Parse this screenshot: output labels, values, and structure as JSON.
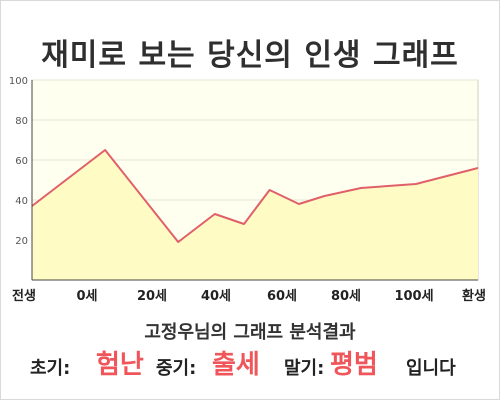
{
  "title": "재미로 보는 당신의 인생 그래프",
  "chart_data": {
    "type": "area",
    "y_ticks": [
      100,
      80,
      60,
      40,
      20
    ],
    "ylim": [
      0,
      100
    ],
    "x_tick_labels": [
      "전생",
      "0세",
      "20세",
      "40세",
      "60세",
      "80세",
      "100세",
      "환생"
    ],
    "points": [
      {
        "x": -20,
        "y": 37
      },
      {
        "x": 0,
        "y": 65
      },
      {
        "x": 20,
        "y": 19
      },
      {
        "x": 30,
        "y": 33
      },
      {
        "x": 38,
        "y": 28
      },
      {
        "x": 45,
        "y": 45
      },
      {
        "x": 53,
        "y": 38
      },
      {
        "x": 60,
        "y": 42
      },
      {
        "x": 70,
        "y": 46
      },
      {
        "x": 85,
        "y": 48
      },
      {
        "x": 102,
        "y": 56
      }
    ],
    "xlim": [
      -20,
      102
    ],
    "colors": {
      "line": "#e0606a",
      "fill": "#fefcc4",
      "plot_bg": "#fffff0",
      "grid": "#e6e6d6"
    }
  },
  "summary_title": "고정우님의 그래프 분석결과",
  "result": {
    "early_label": "초기:",
    "early_value": "험난",
    "mid_label": "중기:",
    "mid_value": "출세",
    "late_label": "말기:",
    "late_value": "평범",
    "suffix": "입니다"
  }
}
